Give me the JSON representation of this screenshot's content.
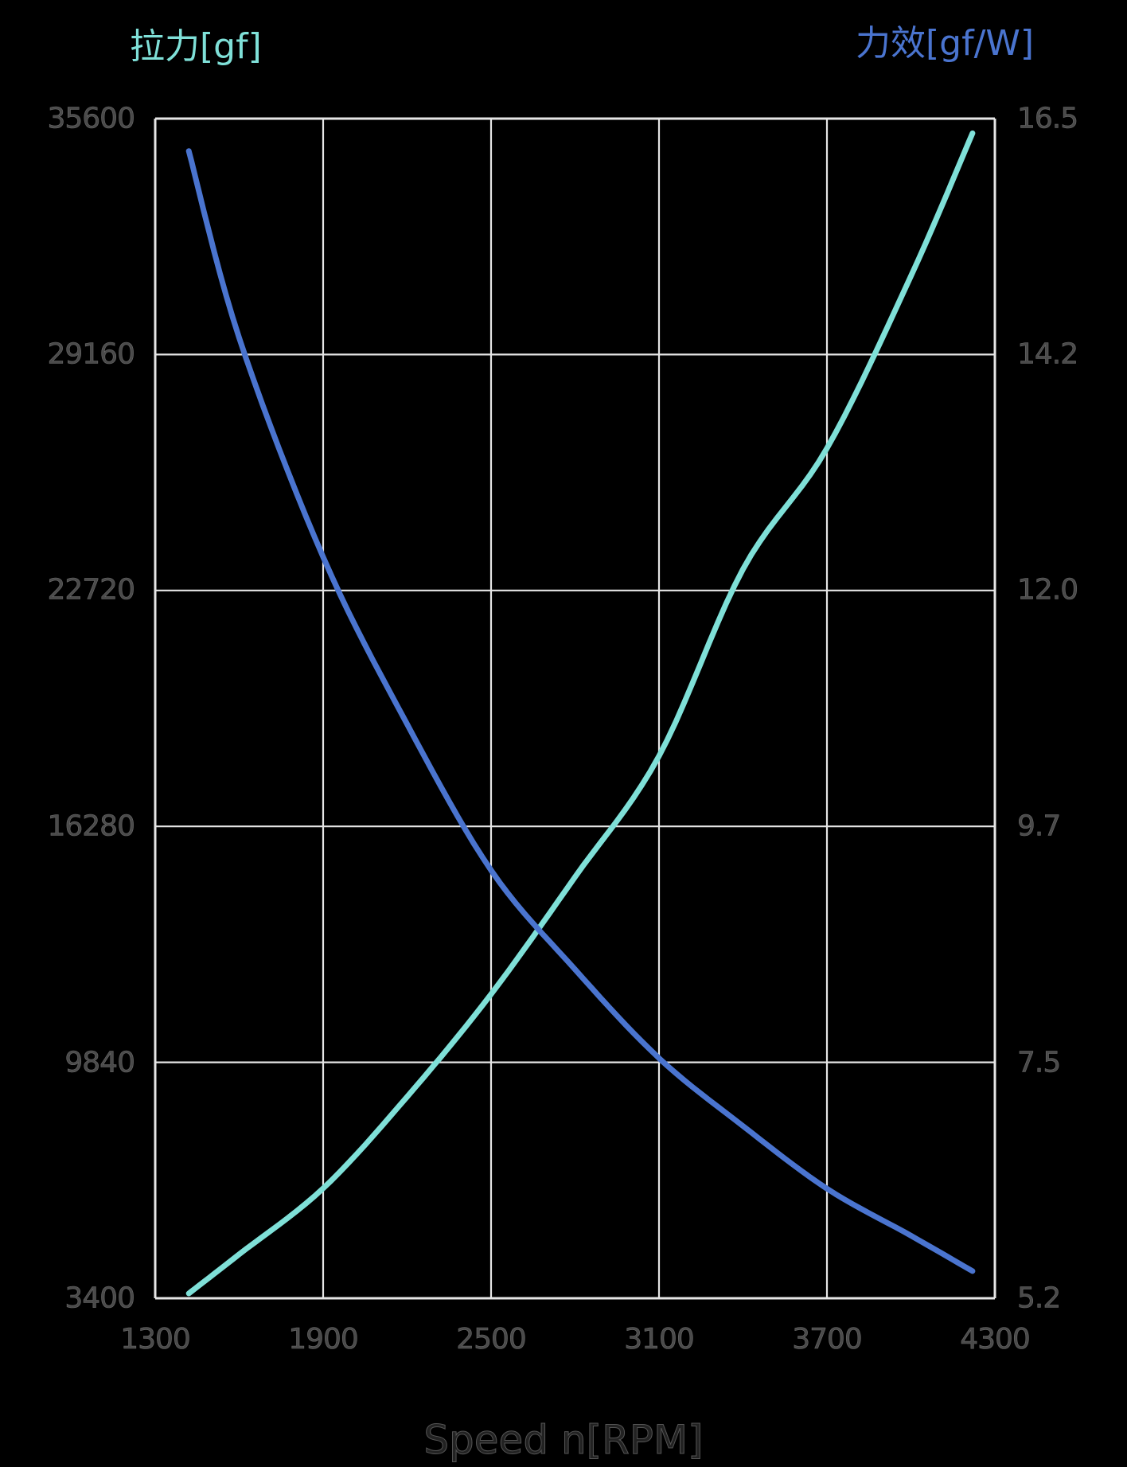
{
  "chart": {
    "left_axis_title": "拉力[gf]",
    "right_axis_title": "力效[gf/W]",
    "x_axis_title": "Speed n[RPM]",
    "x_ticks": [
      "1300",
      "1900",
      "2500",
      "3100",
      "3700",
      "4300"
    ],
    "y_left_ticks": [
      "35600",
      "29160",
      "22720",
      "16280",
      "9840",
      "3400"
    ],
    "y_right_ticks": [
      "16.5",
      "14.2",
      "12.0",
      "9.7",
      "7.5",
      "5.2"
    ],
    "colors": {
      "thrust": "#7fe0d8",
      "efficiency": "#4a74cf",
      "grid": "#e6e6e6",
      "background": "#000000",
      "tick_text": "#4a4a4a"
    }
  },
  "chart_data": {
    "type": "line",
    "title": "",
    "xlabel": "Speed n[RPM]",
    "ylabel": "拉力[gf]",
    "y2label": "力效[gf/W]",
    "xlim": [
      1300,
      4300
    ],
    "ylim": [
      3400,
      35600
    ],
    "y2lim": [
      5.2,
      16.5
    ],
    "grid": true,
    "legend": "none (axis titles colored to match series)",
    "x": [
      1420,
      1600,
      1900,
      2200,
      2500,
      2800,
      3100,
      3400,
      3700,
      4000,
      4220
    ],
    "series": [
      {
        "name": "拉力[gf]",
        "axis": "left",
        "color": "#7fe0d8",
        "values": [
          3530,
          4600,
          6400,
          8900,
          11700,
          14900,
          18200,
          23300,
          26600,
          31300,
          35200
        ]
      },
      {
        "name": "力效[gf/W]",
        "axis": "right",
        "color": "#4a74cf",
        "values": [
          16.19,
          14.4,
          12.3,
          10.7,
          9.3,
          8.35,
          7.5,
          6.85,
          6.25,
          5.8,
          5.46
        ]
      }
    ]
  }
}
